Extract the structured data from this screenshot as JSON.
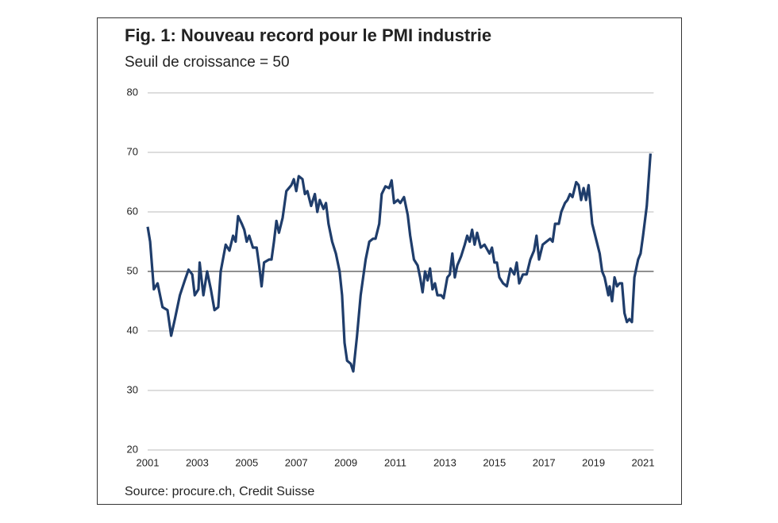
{
  "chart_data": {
    "type": "line",
    "title": "Fig. 1: Nouveau record pour le PMI industrie",
    "subtitle": "Seuil de croissance = 50",
    "source": "Source: procure.ch, Credit Suisse",
    "xlim": [
      2001,
      2021.3
    ],
    "xticks": [
      2001,
      2003,
      2005,
      2007,
      2009,
      2011,
      2013,
      2015,
      2017,
      2019,
      2021
    ],
    "ylim": [
      20,
      80
    ],
    "yticks": [
      20,
      30,
      40,
      50,
      60,
      70,
      80
    ],
    "reference_line": 50,
    "grid": true,
    "series": [
      {
        "color": "#1f3d6b",
        "x": [
          2001.0,
          2001.1,
          2001.25,
          2001.4,
          2001.6,
          2001.8,
          2001.95,
          2002.1,
          2002.3,
          2002.5,
          2002.65,
          2002.8,
          2002.9,
          2003.05,
          2003.1,
          2003.25,
          2003.4,
          2003.55,
          2003.7,
          2003.85,
          2003.95,
          2004.15,
          2004.3,
          2004.45,
          2004.55,
          2004.65,
          2004.8,
          2004.9,
          2005.0,
          2005.1,
          2005.25,
          2005.4,
          2005.5,
          2005.6,
          2005.7,
          2005.9,
          2006.0,
          2006.1,
          2006.2,
          2006.3,
          2006.45,
          2006.6,
          2006.8,
          2006.9,
          2007.0,
          2007.1,
          2007.25,
          2007.35,
          2007.45,
          2007.6,
          2007.75,
          2007.85,
          2007.95,
          2008.1,
          2008.2,
          2008.3,
          2008.45,
          2008.6,
          2008.75,
          2008.85,
          2008.95,
          2009.05,
          2009.2,
          2009.3,
          2009.45,
          2009.6,
          2009.8,
          2009.95,
          2010.1,
          2010.2,
          2010.35,
          2010.45,
          2010.6,
          2010.75,
          2010.85,
          2010.95,
          2011.1,
          2011.2,
          2011.35,
          2011.5,
          2011.6,
          2011.75,
          2011.9,
          2012.0,
          2012.1,
          2012.2,
          2012.3,
          2012.4,
          2012.5,
          2012.6,
          2012.7,
          2012.85,
          2012.95,
          2013.1,
          2013.2,
          2013.3,
          2013.4,
          2013.5,
          2013.65,
          2013.8,
          2013.9,
          2014.0,
          2014.1,
          2014.2,
          2014.3,
          2014.45,
          2014.6,
          2014.8,
          2014.9,
          2015.0,
          2015.1,
          2015.2,
          2015.35,
          2015.5,
          2015.65,
          2015.8,
          2015.9,
          2016.0,
          2016.15,
          2016.3,
          2016.45,
          2016.6,
          2016.7,
          2016.8,
          2016.95,
          2017.1,
          2017.25,
          2017.35,
          2017.45,
          2017.6,
          2017.7,
          2017.85,
          2017.95,
          2018.05,
          2018.15,
          2018.3,
          2018.4,
          2018.5,
          2018.6,
          2018.7,
          2018.8,
          2018.95,
          2019.1,
          2019.25,
          2019.35,
          2019.45,
          2019.6,
          2019.65,
          2019.75,
          2019.85,
          2019.95,
          2020.05,
          2020.15,
          2020.25,
          2020.35,
          2020.45,
          2020.55,
          2020.65,
          2020.8,
          2020.9,
          2021.0,
          2021.15,
          2021.3
        ],
        "values": [
          57.5,
          55,
          47,
          48,
          44,
          43.5,
          39.2,
          42,
          46,
          48.5,
          50.3,
          49.5,
          46,
          47,
          51.5,
          46,
          50,
          47,
          43.5,
          44,
          50,
          54.5,
          53.5,
          56,
          55,
          59.3,
          58,
          57,
          55,
          56,
          54,
          54,
          51,
          47.5,
          51.5,
          52,
          52,
          55,
          58.5,
          56.5,
          59,
          63.5,
          64.5,
          65.5,
          63.5,
          66,
          65.5,
          63,
          63.5,
          61,
          63,
          60,
          62,
          60.5,
          61.5,
          58,
          55,
          53,
          50,
          46,
          38,
          35,
          34.5,
          33.2,
          39,
          46,
          52,
          55,
          55.5,
          55.5,
          58,
          63,
          64.3,
          64,
          65.3,
          61.5,
          62,
          61.5,
          62.5,
          59.5,
          56,
          52,
          51,
          49,
          46.5,
          50,
          48.5,
          50.5,
          47,
          48,
          46,
          46,
          45.5,
          49,
          49.5,
          53,
          49,
          51,
          52.5,
          54.5,
          56,
          55,
          57,
          54.5,
          56.5,
          54,
          54.5,
          53,
          54,
          51.5,
          51.5,
          49,
          48,
          47.5,
          50.5,
          49.5,
          51.5,
          48,
          49.5,
          49.5,
          52,
          53.5,
          56,
          52,
          54.5,
          55,
          55.5,
          55,
          58,
          58,
          60,
          61.5,
          62,
          63,
          62.5,
          65,
          64.5,
          62,
          64,
          62,
          64.5,
          58,
          55.5,
          53,
          50,
          49,
          46,
          47.5,
          45,
          49,
          47.5,
          48,
          48,
          43,
          41.5,
          42,
          41.5,
          49,
          52,
          53,
          56,
          61,
          69.8
        ]
      }
    ]
  }
}
